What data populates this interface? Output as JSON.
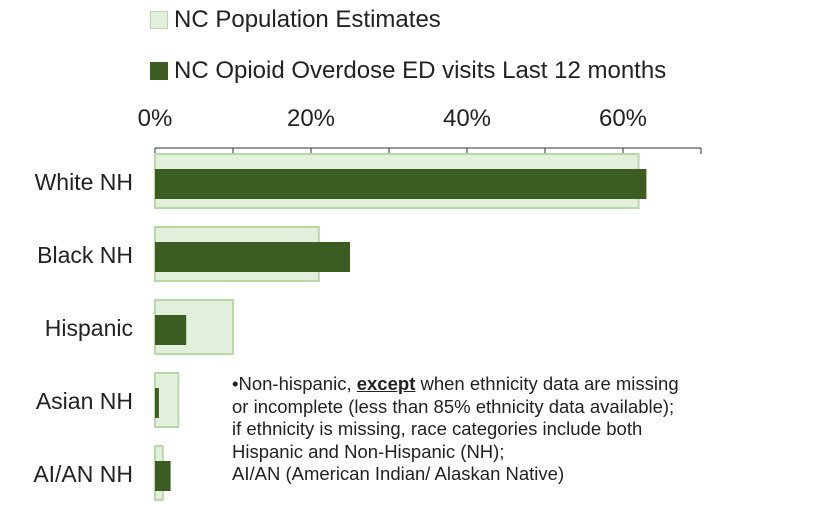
{
  "chart_data": {
    "type": "bar",
    "orientation": "horizontal",
    "categories": [
      "White NH",
      "Black NH",
      "Hispanic",
      "Asian NH",
      "AI/AN NH"
    ],
    "series": [
      {
        "name": "NC Population Estimates",
        "values": [
          62,
          21,
          10,
          3,
          1
        ],
        "color": "#e2efda",
        "stroke": "#b7d9a8"
      },
      {
        "name": "NC Opioid Overdose ED visits Last 12 months",
        "values": [
          63,
          25,
          4,
          0.5,
          2
        ],
        "color": "#3b5d22"
      }
    ],
    "x_ticks": [
      "0%",
      "20%",
      "40%",
      "60%"
    ],
    "xlim": [
      0,
      70
    ],
    "tick_values": [
      0,
      20,
      40,
      60
    ],
    "x_axis_position": "top",
    "legend_position": "top",
    "grid": false
  },
  "legend": {
    "population": "NC Population Estimates",
    "overdose": "NC Opioid Overdose ED visits Last 12 months"
  },
  "note": {
    "prefix": "•Non-hispanic, ",
    "emphasis": "except",
    "line1_rest": " when ethnicity data are missing",
    "line2": "or incomplete (less than 85% ethnicity data available);",
    "line3": "if ethnicity is missing, race categories include both",
    "line4": "Hispanic and Non-Hispanic (NH);",
    "line5": "AI/AN (American Indian/ Alaskan Native)"
  }
}
